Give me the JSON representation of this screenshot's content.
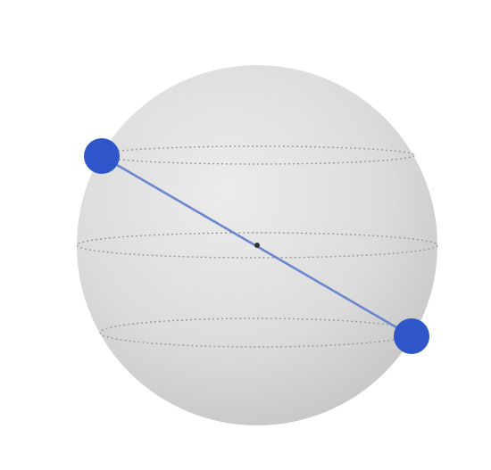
{
  "diagram": {
    "kind": "sphere-diameter",
    "colors": {
      "background": "#ffffff",
      "sphere_light": "#ececec",
      "sphere_mid": "#dcdcdc",
      "sphere_dark": "#c4c4c4",
      "latitude_line": "#9a9a9a",
      "diameter_line": "#6b86cf",
      "point_fill": "#2f56c9",
      "point_fill_dark": "#2246b0",
      "center_dot": "#333333"
    },
    "latitude_rings": 3,
    "endpoints": 2,
    "has_center_point": true
  }
}
